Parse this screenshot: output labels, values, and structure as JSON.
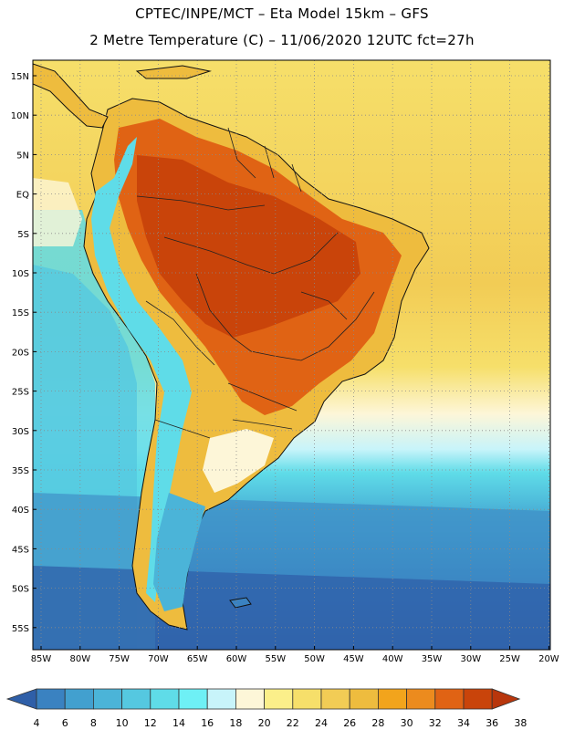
{
  "header": {
    "line1": "CPTEC/INPE/MCT –  Eta Model 15km – GFS",
    "line2": "2 Metre Temperature (C) – 11/06/2020 12UTC fct=27h"
  },
  "axes": {
    "lat_labels": [
      "15N",
      "10N",
      "5N",
      "EQ",
      "5S",
      "10S",
      "15S",
      "20S",
      "25S",
      "30S",
      "35S",
      "40S",
      "45S",
      "50S",
      "55S"
    ],
    "lon_labels": [
      "85W",
      "80W",
      "75W",
      "70W",
      "65W",
      "60W",
      "55W",
      "50W",
      "45W",
      "40W",
      "35W",
      "30W",
      "25W",
      "20W"
    ]
  },
  "colorbar": {
    "labels": [
      "4",
      "6",
      "8",
      "10",
      "12",
      "14",
      "16",
      "18",
      "20",
      "22",
      "24",
      "26",
      "28",
      "30",
      "32",
      "34",
      "36",
      "38"
    ],
    "colors": [
      "#2f5fa8",
      "#3a82c1",
      "#42a0cf",
      "#4bb4d8",
      "#55c8e0",
      "#5fdce8",
      "#6ef0f5",
      "#c8f4fa",
      "#fdf6d8",
      "#fbef8a",
      "#f6df6a",
      "#f2cc55",
      "#eebc3e",
      "#f2a41c",
      "#ec8b1e",
      "#e06314",
      "#c9440a",
      "#b8360c"
    ]
  },
  "map_colors": {
    "ocean_deep": "#2f5fa8",
    "ocean_mid": "#42a0cf",
    "ocean_light": "#5fdce8",
    "ocean_pale": "#c8f4fa",
    "warm_ocean": "#f6df6a",
    "land_hot": "#c9440a",
    "land_warm": "#e06314",
    "land_orange": "#eebc3e"
  }
}
